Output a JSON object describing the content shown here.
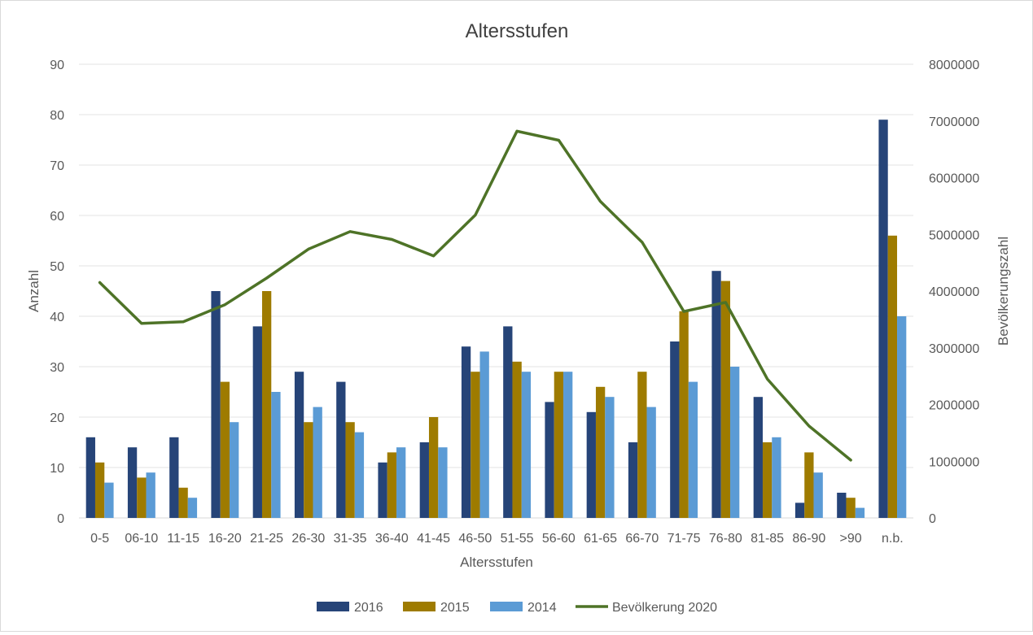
{
  "chart_data": {
    "type": "bar",
    "title": "Altersstufen",
    "xlabel": "Altersstufen",
    "ylabel": "Anzahl",
    "y2label": "Bevölkerungszahl",
    "ylim": [
      0,
      90
    ],
    "y2lim": [
      0,
      8000000
    ],
    "yticks": [
      0,
      10,
      20,
      30,
      40,
      50,
      60,
      70,
      80,
      90
    ],
    "y2ticks": [
      0,
      1000000,
      2000000,
      3000000,
      4000000,
      5000000,
      6000000,
      7000000,
      8000000
    ],
    "categories": [
      "0-5",
      "06-10",
      "11-15",
      "16-20",
      "21-25",
      "26-30",
      "31-35",
      "36-40",
      "41-45",
      "46-50",
      "51-55",
      "56-60",
      "61-65",
      "66-70",
      "71-75",
      "76-80",
      "81-85",
      "86-90",
      ">90",
      "n.b."
    ],
    "series": [
      {
        "name": "2016",
        "type": "bar",
        "color": "#264478",
        "values": [
          16,
          14,
          16,
          45,
          38,
          29,
          27,
          11,
          15,
          34,
          38,
          23,
          21,
          15,
          35,
          49,
          24,
          3,
          5,
          79
        ]
      },
      {
        "name": "2015",
        "type": "bar",
        "color": "#9e7b00",
        "values": [
          11,
          8,
          6,
          27,
          45,
          19,
          19,
          13,
          20,
          29,
          31,
          29,
          26,
          29,
          41,
          47,
          15,
          13,
          4,
          56
        ]
      },
      {
        "name": "2014",
        "type": "bar",
        "color": "#5b9bd5",
        "values": [
          7,
          9,
          4,
          19,
          25,
          22,
          17,
          14,
          14,
          33,
          29,
          29,
          24,
          22,
          27,
          30,
          16,
          9,
          2,
          40
        ]
      },
      {
        "name": "Bevölkerung 2020",
        "type": "line",
        "axis": "right",
        "color": "#4e7327",
        "values": [
          4150000,
          3430000,
          3460000,
          3760000,
          4230000,
          4740000,
          5050000,
          4910000,
          4620000,
          5340000,
          6820000,
          6660000,
          5580000,
          4860000,
          3640000,
          3800000,
          2450000,
          1620000,
          1020000,
          null
        ]
      }
    ],
    "legend": "bottom",
    "grid": true
  }
}
